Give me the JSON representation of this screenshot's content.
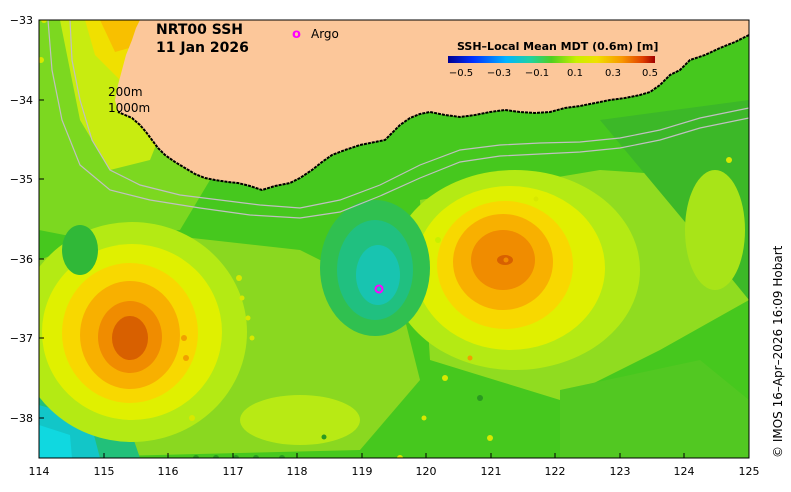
{
  "title": {
    "line1": "NRT00 SSH",
    "line2": "11 Jan 2026"
  },
  "legend": {
    "argo_symbol": "o",
    "argo_label": "Argo"
  },
  "contours": {
    "label_200": "200m",
    "label_1000": "1000m"
  },
  "colorbar": {
    "title": "SSH–Local Mean MDT (0.6m) [m]",
    "ticks": [
      "−0.5",
      "−0.3",
      "−0.1",
      "0.1",
      "0.3",
      "0.5"
    ]
  },
  "axes": {
    "x_ticks": [
      "114",
      "115",
      "116",
      "117",
      "118",
      "119",
      "120",
      "121",
      "122",
      "123",
      "124",
      "125"
    ],
    "y_ticks": [
      "−33",
      "−34",
      "−35",
      "−36",
      "−37",
      "−38"
    ]
  },
  "credit": "© IMOS 16–Apr–2026 16:09 Hobart",
  "colors": {
    "land": "#fcc79a",
    "ocean_base": "#46c81e",
    "argo": "#ff00ff"
  }
}
